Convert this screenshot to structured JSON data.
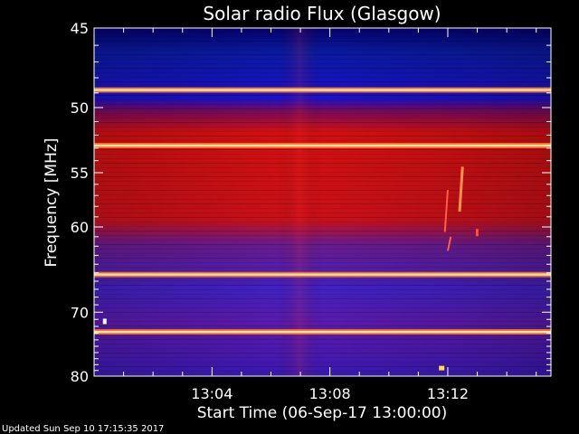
{
  "chart_data": {
    "type": "heatmap",
    "title": "Solar radio Flux (Glasgow)",
    "xlabel": "Start Time (06-Sep-17 13:00:00)",
    "ylabel": "Frequency [MHz]",
    "x_ticks": [
      "13:04",
      "13:08",
      "13:12"
    ],
    "y_ticks": [
      "45",
      "50",
      "55",
      "60",
      "70",
      "80"
    ],
    "x_range_minutes": [
      0,
      15.5
    ],
    "y_axis_scale": "reciprocal",
    "y_range_mhz": [
      45,
      80
    ],
    "x_tick_values_minutes": [
      4,
      8,
      12
    ],
    "y_tick_values_mhz": [
      45,
      50,
      55,
      60,
      70,
      80
    ],
    "bright_lines_mhz": [
      48.8,
      52.8,
      65.2,
      72.8
    ],
    "colors": {
      "background_low": "#2a1aa8",
      "background_mid": "#c01010",
      "bright_line": "#ffe0a0",
      "high_band": "#000a6a"
    }
  },
  "footer": "Updated Sun Sep 10 17:15:35 2017"
}
